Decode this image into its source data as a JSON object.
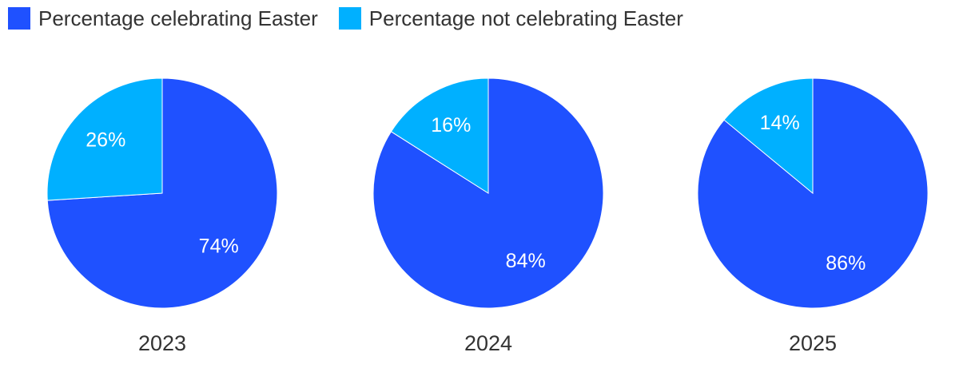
{
  "legend": [
    {
      "label": "Percentage celebrating Easter",
      "color": "#1F51FF"
    },
    {
      "label": "Percentage not celebrating Easter",
      "color": "#00B0FF"
    }
  ],
  "chart_data": [
    {
      "type": "pie",
      "title": "2023",
      "slices": [
        {
          "name": "Percentage celebrating Easter",
          "value": 74,
          "label": "74%",
          "color": "#1F51FF"
        },
        {
          "name": "Percentage not celebrating Easter",
          "value": 26,
          "label": "26%",
          "color": "#00B0FF"
        }
      ]
    },
    {
      "type": "pie",
      "title": "2024",
      "slices": [
        {
          "name": "Percentage celebrating Easter",
          "value": 84,
          "label": "84%",
          "color": "#1F51FF"
        },
        {
          "name": "Percentage not celebrating Easter",
          "value": 16,
          "label": "16%",
          "color": "#00B0FF"
        }
      ]
    },
    {
      "type": "pie",
      "title": "2025",
      "slices": [
        {
          "name": "Percentage celebrating Easter",
          "value": 86,
          "label": "86%",
          "color": "#1F51FF"
        },
        {
          "name": "Percentage not celebrating Easter",
          "value": 14,
          "label": "14%",
          "color": "#00B0FF"
        }
      ]
    }
  ]
}
